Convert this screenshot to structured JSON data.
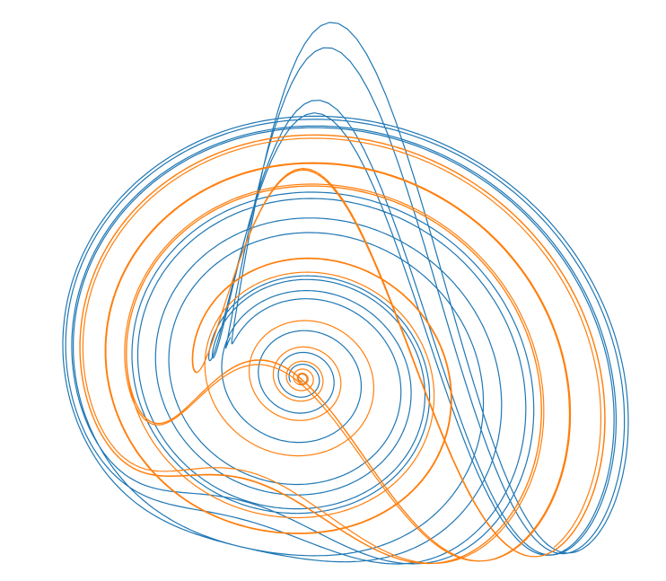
{
  "chart_data": {
    "type": "line",
    "description_free": true,
    "title": "",
    "xlabel": "",
    "ylabel": "",
    "axes_visible": false,
    "grid": false,
    "legend": "none",
    "series": [
      {
        "color": "#1f77b4",
        "role": "trajectory-a"
      },
      {
        "color": "#ff7f0e",
        "role": "trajectory-b"
      },
      {
        "color": "#c8893d",
        "role": "transient"
      }
    ],
    "attractor_params": {
      "a": 0.2,
      "b": 0.2,
      "c": 5.7
    },
    "view": {
      "azimuth_deg": -60,
      "elevation_deg": 30
    }
  }
}
